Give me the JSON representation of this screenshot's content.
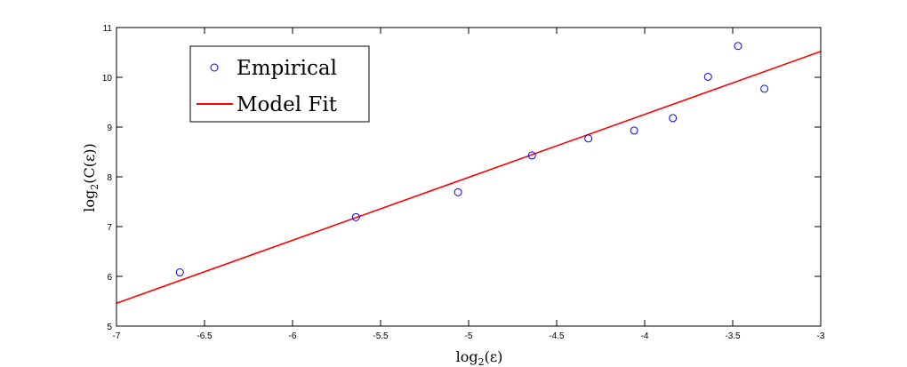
{
  "chart_data": {
    "type": "scatter",
    "title": "",
    "xlabel_parts": {
      "base": "log",
      "sub": "2",
      "arg": "(ε)"
    },
    "ylabel_parts": {
      "base": "log",
      "sub": "2",
      "arg": "(C(ε))"
    },
    "xlim": [
      -7,
      -3
    ],
    "ylim": [
      5,
      11
    ],
    "xticks": [
      -7,
      -6.5,
      -6,
      -5.5,
      -5,
      -4.5,
      -4,
      -3.5,
      -3
    ],
    "xtick_labels": [
      "-7",
      "-6.5",
      "-6",
      "-5.5",
      "-5",
      "-4.5",
      "-4",
      "-3.5",
      "-3"
    ],
    "yticks": [
      5,
      6,
      7,
      8,
      9,
      10,
      11
    ],
    "ytick_labels": [
      "5",
      "6",
      "7",
      "8",
      "9",
      "10",
      "11"
    ],
    "grid": false,
    "legend_position": "top-left",
    "series": [
      {
        "name": "Empirical",
        "kind": "scatter",
        "color": "#0000ff",
        "marker": "circle-open",
        "x": [
          -6.64,
          -5.64,
          -5.06,
          -4.64,
          -4.32,
          -4.06,
          -3.84,
          -3.64,
          -3.47,
          -3.32
        ],
        "y": [
          6.08,
          7.19,
          7.69,
          8.43,
          8.77,
          8.93,
          9.18,
          10.01,
          10.63,
          9.77
        ]
      },
      {
        "name": "Model Fit",
        "kind": "line",
        "color": "#ff0000",
        "x": [
          -7,
          -3
        ],
        "y": [
          5.46,
          10.52
        ]
      }
    ]
  }
}
